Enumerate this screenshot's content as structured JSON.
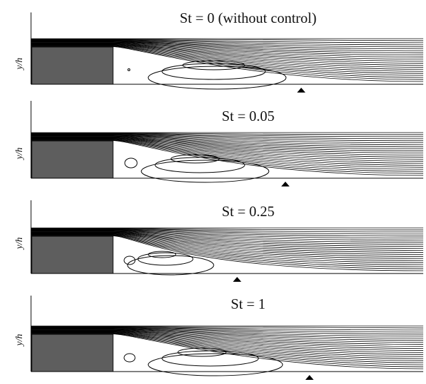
{
  "panels": [
    {
      "title": "St = 0 (without control)",
      "ylabel": "y/h"
    },
    {
      "title": "St = 0.05",
      "ylabel": "y/h"
    },
    {
      "title": "St = 0.25",
      "ylabel": "y/h"
    },
    {
      "title": "St = 1",
      "ylabel": "y/h"
    }
  ],
  "colors": {
    "step": "#5e5e5e",
    "line": "#000000",
    "marker": "#000000"
  }
}
